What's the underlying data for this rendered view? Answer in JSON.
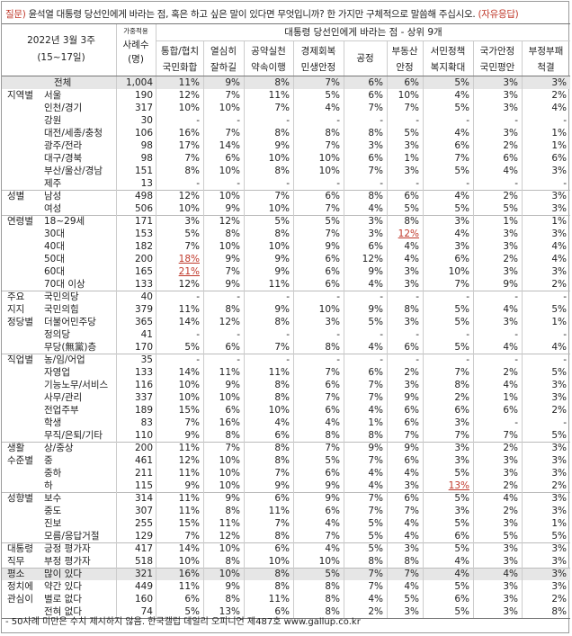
{
  "question": {
    "prefix": "질문)",
    "text": " 윤석열 대통령 당선인에게 바라는 점, 혹은 하고 싶은 말이 있다면 무엇입니까? 한 가지만 구체적으로 말씀해 주십시오.",
    "suffix": " (자유응답)"
  },
  "header": {
    "date_line1": "2022년 3월 3주",
    "date_line2": "(15~17일)",
    "sample_small": "가중적용",
    "sample_line1": "사례수",
    "sample_line2": "(명)",
    "span_title": "대통령 당선인에게 바라는 점 - 상위 9개",
    "columns": [
      {
        "l1": "통합/협치",
        "l2": "국민화합"
      },
      {
        "l1": "열심히",
        "l2": "잘하길"
      },
      {
        "l1": "공약실천",
        "l2": "약속이행"
      },
      {
        "l1": "경제회복",
        "l2": "민생안정"
      },
      {
        "l1": "공정",
        "l2": ""
      },
      {
        "l1": "부동산",
        "l2": "안정"
      },
      {
        "l1": "서민정책",
        "l2": "복지확대"
      },
      {
        "l1": "국가안정",
        "l2": "국민평안"
      },
      {
        "l1": "부정부패",
        "l2": "척결"
      }
    ]
  },
  "rows": [
    {
      "g": "",
      "s": "전체",
      "n": "1,004",
      "v": [
        "11%",
        "9%",
        "8%",
        "7%",
        "6%",
        "6%",
        "5%",
        "3%",
        "3%"
      ],
      "total": true
    },
    {
      "g": "지역별",
      "s": "서울",
      "n": "190",
      "v": [
        "12%",
        "7%",
        "11%",
        "5%",
        "6%",
        "10%",
        "4%",
        "3%",
        "2%"
      ]
    },
    {
      "g": "",
      "s": "인천/경기",
      "n": "317",
      "v": [
        "10%",
        "10%",
        "7%",
        "4%",
        "7%",
        "7%",
        "5%",
        "3%",
        "4%"
      ]
    },
    {
      "g": "",
      "s": "강원",
      "n": "30",
      "v": [
        "-",
        "-",
        "-",
        "-",
        "-",
        "-",
        "-",
        "-",
        "-"
      ]
    },
    {
      "g": "",
      "s": "대전/세종/충청",
      "n": "106",
      "v": [
        "16%",
        "7%",
        "8%",
        "8%",
        "8%",
        "5%",
        "4%",
        "3%",
        "1%"
      ]
    },
    {
      "g": "",
      "s": "광주/전라",
      "n": "98",
      "v": [
        "17%",
        "14%",
        "9%",
        "7%",
        "3%",
        "3%",
        "6%",
        "2%",
        "1%"
      ]
    },
    {
      "g": "",
      "s": "대구/경북",
      "n": "98",
      "v": [
        "7%",
        "6%",
        "10%",
        "10%",
        "6%",
        "1%",
        "7%",
        "6%",
        "6%"
      ]
    },
    {
      "g": "",
      "s": "부산/울산/경남",
      "n": "151",
      "v": [
        "8%",
        "10%",
        "8%",
        "10%",
        "7%",
        "3%",
        "5%",
        "4%",
        "3%"
      ]
    },
    {
      "g": "",
      "s": "제주",
      "n": "13",
      "v": [
        "-",
        "-",
        "-",
        "-",
        "-",
        "-",
        "-",
        "-",
        "-"
      ]
    },
    {
      "g": "성별",
      "s": "남성",
      "n": "498",
      "v": [
        "12%",
        "10%",
        "7%",
        "6%",
        "8%",
        "6%",
        "4%",
        "2%",
        "3%"
      ],
      "sep": true
    },
    {
      "g": "",
      "s": "여성",
      "n": "506",
      "v": [
        "10%",
        "9%",
        "10%",
        "7%",
        "4%",
        "5%",
        "5%",
        "5%",
        "3%"
      ]
    },
    {
      "g": "연령별",
      "s": "18~29세",
      "n": "171",
      "v": [
        "3%",
        "12%",
        "5%",
        "5%",
        "3%",
        "8%",
        "3%",
        "1%",
        "1%"
      ],
      "sep": true
    },
    {
      "g": "",
      "s": "30대",
      "n": "153",
      "v": [
        "5%",
        "8%",
        "8%",
        "7%",
        "3%",
        "12%",
        "4%",
        "3%",
        "3%"
      ],
      "red": [
        5
      ]
    },
    {
      "g": "",
      "s": "40대",
      "n": "182",
      "v": [
        "7%",
        "10%",
        "10%",
        "9%",
        "6%",
        "4%",
        "3%",
        "3%",
        "4%"
      ]
    },
    {
      "g": "",
      "s": "50대",
      "n": "200",
      "v": [
        "18%",
        "9%",
        "9%",
        "6%",
        "12%",
        "4%",
        "6%",
        "2%",
        "4%"
      ],
      "red": [
        0
      ]
    },
    {
      "g": "",
      "s": "60대",
      "n": "165",
      "v": [
        "21%",
        "7%",
        "9%",
        "6%",
        "9%",
        "3%",
        "10%",
        "3%",
        "3%"
      ],
      "red": [
        0
      ]
    },
    {
      "g": "",
      "s": "70대 이상",
      "n": "133",
      "v": [
        "12%",
        "9%",
        "11%",
        "6%",
        "4%",
        "3%",
        "7%",
        "9%",
        "2%"
      ]
    },
    {
      "g": "주요",
      "s": "국민의당",
      "n": "40",
      "v": [
        "-",
        "-",
        "-",
        "-",
        "-",
        "-",
        "-",
        "-",
        "-"
      ],
      "sep": true
    },
    {
      "g": "지지",
      "s": "국민의힘",
      "n": "379",
      "v": [
        "11%",
        "8%",
        "9%",
        "10%",
        "9%",
        "8%",
        "5%",
        "4%",
        "5%"
      ]
    },
    {
      "g": "정당별",
      "s": "더불어민주당",
      "n": "365",
      "v": [
        "14%",
        "12%",
        "8%",
        "3%",
        "5%",
        "3%",
        "5%",
        "3%",
        "1%"
      ]
    },
    {
      "g": "",
      "s": "정의당",
      "n": "41",
      "v": [
        "-",
        "-",
        "-",
        "-",
        "-",
        "-",
        "-",
        "-",
        "-"
      ]
    },
    {
      "g": "",
      "s": "무당(無黨)층",
      "n": "170",
      "v": [
        "5%",
        "6%",
        "7%",
        "8%",
        "4%",
        "6%",
        "5%",
        "4%",
        "4%"
      ]
    },
    {
      "g": "직업별",
      "s": "농/임/어업",
      "n": "35",
      "v": [
        "-",
        "-",
        "-",
        "-",
        "-",
        "-",
        "-",
        "-",
        "-"
      ],
      "sep": true
    },
    {
      "g": "",
      "s": "자영업",
      "n": "133",
      "v": [
        "14%",
        "11%",
        "11%",
        "7%",
        "6%",
        "2%",
        "7%",
        "2%",
        "5%"
      ]
    },
    {
      "g": "",
      "s": "기능노무/서비스",
      "n": "116",
      "v": [
        "10%",
        "9%",
        "8%",
        "6%",
        "7%",
        "3%",
        "8%",
        "4%",
        "3%"
      ]
    },
    {
      "g": "",
      "s": "사무/관리",
      "n": "337",
      "v": [
        "10%",
        "10%",
        "8%",
        "7%",
        "7%",
        "9%",
        "2%",
        "1%",
        "3%"
      ]
    },
    {
      "g": "",
      "s": "전업주부",
      "n": "189",
      "v": [
        "15%",
        "6%",
        "10%",
        "6%",
        "4%",
        "6%",
        "6%",
        "6%",
        "2%"
      ]
    },
    {
      "g": "",
      "s": "학생",
      "n": "83",
      "v": [
        "7%",
        "16%",
        "4%",
        "4%",
        "1%",
        "6%",
        "3%",
        "-",
        "-"
      ]
    },
    {
      "g": "",
      "s": "무직/은퇴/기타",
      "n": "110",
      "v": [
        "9%",
        "8%",
        "6%",
        "8%",
        "8%",
        "7%",
        "7%",
        "7%",
        "5%"
      ]
    },
    {
      "g": "생활",
      "s": "상/중상",
      "n": "200",
      "v": [
        "11%",
        "7%",
        "8%",
        "7%",
        "9%",
        "9%",
        "3%",
        "2%",
        "3%"
      ],
      "sep": true
    },
    {
      "g": "수준별",
      "s": "중",
      "n": "461",
      "v": [
        "12%",
        "10%",
        "8%",
        "5%",
        "7%",
        "6%",
        "3%",
        "3%",
        "3%"
      ]
    },
    {
      "g": "",
      "s": "중하",
      "n": "211",
      "v": [
        "11%",
        "10%",
        "7%",
        "6%",
        "4%",
        "4%",
        "5%",
        "3%",
        "3%"
      ]
    },
    {
      "g": "",
      "s": "하",
      "n": "115",
      "v": [
        "9%",
        "10%",
        "9%",
        "9%",
        "4%",
        "3%",
        "13%",
        "2%",
        "2%"
      ],
      "red": [
        6
      ]
    },
    {
      "g": "성향별",
      "s": "보수",
      "n": "314",
      "v": [
        "11%",
        "9%",
        "6%",
        "9%",
        "7%",
        "6%",
        "5%",
        "4%",
        "3%"
      ],
      "sep": true
    },
    {
      "g": "",
      "s": "중도",
      "n": "307",
      "v": [
        "11%",
        "8%",
        "11%",
        "6%",
        "7%",
        "7%",
        "3%",
        "2%",
        "3%"
      ]
    },
    {
      "g": "",
      "s": "진보",
      "n": "255",
      "v": [
        "15%",
        "11%",
        "7%",
        "4%",
        "5%",
        "4%",
        "5%",
        "3%",
        "1%"
      ]
    },
    {
      "g": "",
      "s": "모름/응답거절",
      "n": "129",
      "v": [
        "7%",
        "12%",
        "8%",
        "7%",
        "5%",
        "4%",
        "6%",
        "5%",
        "5%"
      ]
    },
    {
      "g": "대통령",
      "s": "긍정 평가자",
      "n": "417",
      "v": [
        "14%",
        "10%",
        "6%",
        "4%",
        "5%",
        "3%",
        "5%",
        "3%",
        "3%"
      ],
      "sep": true
    },
    {
      "g": "직무",
      "s": "부정 평가자",
      "n": "518",
      "v": [
        "10%",
        "8%",
        "10%",
        "10%",
        "8%",
        "8%",
        "4%",
        "3%",
        "3%"
      ]
    },
    {
      "g": "평소",
      "s": "많이 있다",
      "n": "321",
      "v": [
        "16%",
        "10%",
        "8%",
        "5%",
        "7%",
        "7%",
        "4%",
        "4%",
        "3%"
      ],
      "sep": true,
      "stripe": true
    },
    {
      "g": "정치에",
      "s": "약간 있다",
      "n": "449",
      "v": [
        "11%",
        "9%",
        "8%",
        "8%",
        "7%",
        "4%",
        "5%",
        "3%",
        "3%"
      ]
    },
    {
      "g": "관심이",
      "s": "별로 없다",
      "n": "160",
      "v": [
        "6%",
        "8%",
        "11%",
        "8%",
        "4%",
        "5%",
        "6%",
        "3%",
        "2%"
      ]
    },
    {
      "g": "",
      "s": "전혀 없다",
      "n": "74",
      "v": [
        "5%",
        "13%",
        "6%",
        "8%",
        "2%",
        "3%",
        "5%",
        "3%",
        "8%"
      ]
    }
  ],
  "footer": "- 50사례 미만은 수치 제시하지 않음. 한국갤럽 데일리 오피니언 제487호 www.gallup.co.kr"
}
